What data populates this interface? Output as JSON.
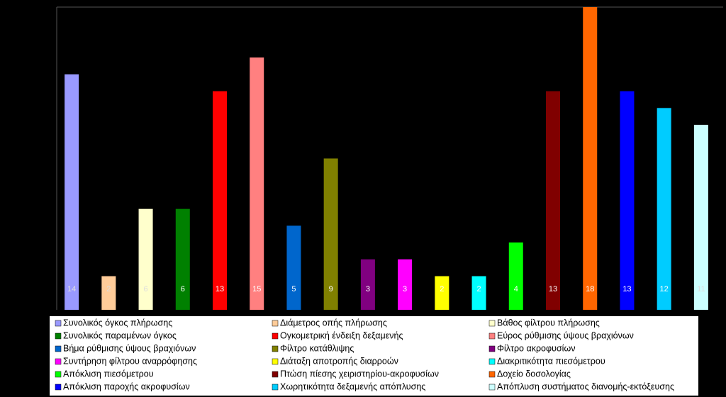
{
  "chart_data": {
    "type": "bar",
    "categories": [
      "Συνολικός όγκος πλήρωσης",
      "Διάμετρος οπής πλήρωσης",
      "Βάθος φίλτρου πλήρωσης",
      "Συνολικός παραμένων όγκος",
      "Ογκομετρική ένδειξη δεξαμενής",
      "Εύρος ρύθμισης ύψους βραχιόνων",
      "Βήμα ρύθμισης ύψους βραχιόνων",
      "Φίλτρο κατάθλιψης",
      "Φίλτρο ακροφυσίων",
      "Συντήρηση φίλτρου αναρρόφησης",
      "Διάταξη αποτροπής διαρροών",
      "Διακριτικότητα πιεσόμετρου",
      "Απόκλιση πιεσόμετρου",
      "Πτώση πίεσης χειριστηρίου-ακροφυσίων",
      "Δοχείο δοσολογίας",
      "Απόκλιση παροχής ακροφυσίων",
      "Χωρητικότητα δεξαμενής απόπλυσης",
      "Απόπλυση συστήματος διανομής-εκτόξευσης"
    ],
    "values": [
      14,
      2,
      6,
      6,
      13,
      15,
      5,
      9,
      3,
      3,
      2,
      2,
      4,
      13,
      18,
      13,
      12,
      11
    ],
    "colors": [
      "#9999ff",
      "#ffcc99",
      "#ffffcc",
      "#008000",
      "#ff0000",
      "#ff8080",
      "#0066cc",
      "#808000",
      "#800080",
      "#ff00ff",
      "#ffff00",
      "#00ffff",
      "#00ff00",
      "#800000",
      "#ff6600",
      "#0000ff",
      "#00ccff",
      "#ccffff"
    ],
    "ylim": [
      0,
      18
    ],
    "legend": "bottom"
  }
}
